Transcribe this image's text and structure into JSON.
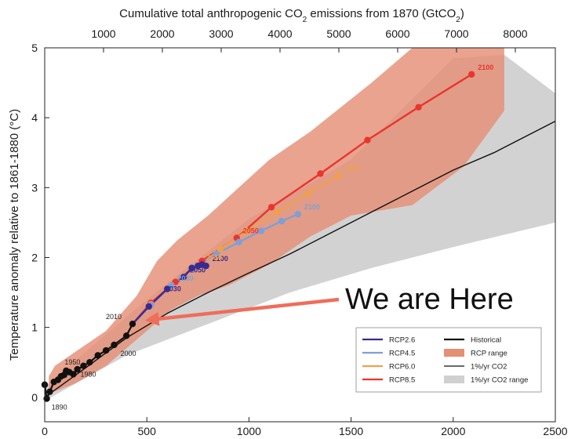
{
  "chart_data": {
    "type": "line",
    "title": "",
    "top_axis": {
      "label": "Cumulative total anthropogenic CO",
      "label_sub": "2",
      "label_tail": " emissions from 1870 (GtCO",
      "label_sub2": "2",
      "label_end": ")",
      "ticks": [
        {
          "value": 1000,
          "label": "1000"
        },
        {
          "value": 2000,
          "label": "2000"
        },
        {
          "value": 3000,
          "label": "3000"
        },
        {
          "value": 4000,
          "label": "4000"
        },
        {
          "value": 5000,
          "label": "5000"
        },
        {
          "value": 6000,
          "label": "6000"
        },
        {
          "value": 7000,
          "label": "7000"
        },
        {
          "value": 8000,
          "label": "8000"
        }
      ]
    },
    "ylabel": "Temperature anomaly relative to 1861-1880 (°C)",
    "xlim": [
      0,
      2500
    ],
    "ylim": [
      -0.35,
      5
    ],
    "x_ticks": [
      {
        "value": 0,
        "label": "0"
      },
      {
        "value": 500,
        "label": "500"
      },
      {
        "value": 1000,
        "label": "1000"
      },
      {
        "value": 1500,
        "label": "1500"
      },
      {
        "value": 2000,
        "label": "2000"
      },
      {
        "value": 2500,
        "label": "2500"
      }
    ],
    "y_ticks": [
      {
        "value": 0,
        "label": "0"
      },
      {
        "value": 1,
        "label": "1"
      },
      {
        "value": 2,
        "label": "2"
      },
      {
        "value": 3,
        "label": "3"
      },
      {
        "value": 4,
        "label": "4"
      },
      {
        "value": 5,
        "label": "5"
      }
    ],
    "colors": {
      "rcp26": "#3b2a8f",
      "rcp45": "#7f9fd6",
      "rcp60": "#f0a04b",
      "rcp85": "#e8352d",
      "historical": "#111111",
      "rcp_range": "#e58f75",
      "co2_range": "#d0d0d0",
      "arrow": "#ef6e5a"
    },
    "bands": [
      {
        "name": "1%/yr CO2 range",
        "points": [
          [
            0,
            -0.05
          ],
          [
            400,
            0.6
          ],
          [
            800,
            1.05
          ],
          [
            1200,
            1.5
          ],
          [
            1600,
            1.85
          ],
          [
            2000,
            2.15
          ],
          [
            2500,
            2.5
          ],
          [
            2500,
            4.35
          ],
          [
            2250,
            4.9
          ],
          [
            2000,
            4.85
          ],
          [
            1500,
            3.4
          ],
          [
            1000,
            2.55
          ],
          [
            500,
            1.4
          ],
          [
            180,
            0.6
          ],
          [
            0,
            0.15
          ]
        ]
      },
      {
        "name": "RCP range",
        "points": [
          [
            20,
            0.05
          ],
          [
            150,
            0.2
          ],
          [
            300,
            0.45
          ],
          [
            420,
            0.75
          ],
          [
            500,
            0.95
          ],
          [
            620,
            1.25
          ],
          [
            750,
            1.45
          ],
          [
            900,
            1.6
          ],
          [
            1100,
            1.9
          ],
          [
            1300,
            2.3
          ],
          [
            1500,
            2.6
          ],
          [
            1800,
            2.75
          ],
          [
            2050,
            3.3
          ],
          [
            2250,
            4.1
          ],
          [
            2250,
            5
          ],
          [
            1800,
            5
          ],
          [
            1600,
            4.5
          ],
          [
            1300,
            3.8
          ],
          [
            1100,
            3.4
          ],
          [
            950,
            3.0
          ],
          [
            800,
            2.6
          ],
          [
            650,
            2.25
          ],
          [
            550,
            1.95
          ],
          [
            450,
            1.45
          ],
          [
            300,
            0.95
          ],
          [
            150,
            0.65
          ],
          [
            50,
            0.45
          ],
          [
            20,
            0.3
          ]
        ]
      }
    ],
    "series": [
      {
        "name": "Historical",
        "key": "historical",
        "style": "thick",
        "points": [
          [
            0,
            0.18
          ],
          [
            10,
            -0.02
          ],
          [
            25,
            0.08
          ],
          [
            45,
            0.22
          ],
          [
            65,
            0.25
          ],
          [
            80,
            0.3
          ],
          [
            95,
            0.32
          ],
          [
            105,
            0.38
          ],
          [
            120,
            0.36
          ],
          [
            140,
            0.33
          ],
          [
            160,
            0.4
          ],
          [
            190,
            0.45
          ],
          [
            220,
            0.5
          ],
          [
            260,
            0.6
          ],
          [
            300,
            0.67
          ],
          [
            340,
            0.75
          ],
          [
            400,
            0.88
          ],
          [
            430,
            1.05
          ]
        ]
      },
      {
        "name": "1%/yr CO2",
        "key": "historical",
        "style": "thin",
        "points": [
          [
            0,
            0
          ],
          [
            200,
            0.42
          ],
          [
            400,
            0.85
          ],
          [
            600,
            1.2
          ],
          [
            800,
            1.5
          ],
          [
            1000,
            1.78
          ],
          [
            1200,
            2.05
          ],
          [
            1400,
            2.35
          ],
          [
            1600,
            2.65
          ],
          [
            1800,
            2.95
          ],
          [
            2000,
            3.25
          ],
          [
            2200,
            3.5
          ],
          [
            2500,
            3.95
          ]
        ]
      },
      {
        "name": "RCP2.6",
        "key": "rcp26",
        "style": "markers",
        "points": [
          [
            430,
            1.05
          ],
          [
            510,
            1.3
          ],
          [
            600,
            1.55
          ],
          [
            680,
            1.72
          ],
          [
            720,
            1.85
          ],
          [
            750,
            1.88
          ],
          [
            770,
            1.9
          ],
          [
            790,
            1.88
          ]
        ]
      },
      {
        "name": "RCP4.5",
        "key": "rcp45",
        "style": "markers",
        "points": [
          [
            430,
            1.05
          ],
          [
            520,
            1.32
          ],
          [
            620,
            1.6
          ],
          [
            730,
            1.85
          ],
          [
            840,
            2.05
          ],
          [
            950,
            2.22
          ],
          [
            1060,
            2.38
          ],
          [
            1160,
            2.52
          ],
          [
            1240,
            2.62
          ]
        ]
      },
      {
        "name": "RCP6.0",
        "key": "rcp60",
        "style": "markers",
        "points": [
          [
            430,
            1.05
          ],
          [
            520,
            1.33
          ],
          [
            620,
            1.6
          ],
          [
            740,
            1.85
          ],
          [
            860,
            2.12
          ],
          [
            990,
            2.38
          ],
          [
            1140,
            2.65
          ],
          [
            1290,
            2.92
          ],
          [
            1440,
            3.17
          ]
        ]
      },
      {
        "name": "RCP8.5",
        "key": "rcp85",
        "style": "markers",
        "points": [
          [
            430,
            1.05
          ],
          [
            520,
            1.35
          ],
          [
            640,
            1.65
          ],
          [
            770,
            1.95
          ],
          [
            940,
            2.28
          ],
          [
            1110,
            2.72
          ],
          [
            1350,
            3.2
          ],
          [
            1580,
            3.68
          ],
          [
            1830,
            4.15
          ],
          [
            2090,
            4.62
          ]
        ]
      }
    ],
    "point_labels": [
      {
        "text": "2100",
        "key": "rcp85",
        "at": [
          2090,
          4.62
        ]
      },
      {
        "text": "2100",
        "key": "rcp60",
        "at": [
          1440,
          3.17
        ]
      },
      {
        "text": "2100",
        "key": "rcp45",
        "at": [
          1240,
          2.62
        ]
      },
      {
        "text": "2100",
        "key": "rcp26",
        "at": [
          790,
          1.88
        ]
      },
      {
        "text": "2050",
        "key": "rcp85",
        "at": [
          940,
          2.28
        ]
      },
      {
        "text": "2050",
        "key": "rcp60",
        "at": [
          760,
          1.9
        ]
      },
      {
        "text": "2050",
        "key": "rcp26",
        "at": [
          680,
          1.72
        ]
      },
      {
        "text": "2030",
        "key": "rcp26",
        "at": [
          560,
          1.45
        ]
      },
      {
        "text": "2030",
        "key": "rcp45",
        "at": [
          620,
          1.6
        ]
      }
    ],
    "historical_labels": [
      {
        "text": "1950",
        "at": [
          105,
          0.38
        ]
      },
      {
        "text": "1890",
        "at": [
          10,
          -0.02
        ]
      },
      {
        "text": "1980",
        "at": [
          190,
          0.45
        ]
      },
      {
        "text": "2000",
        "at": [
          340,
          0.75
        ]
      },
      {
        "text": "2010",
        "at": [
          430,
          1.05
        ]
      }
    ],
    "legend": {
      "position": "bottom-right",
      "items": [
        {
          "label": "RCP2.6",
          "key": "rcp26",
          "kind": "line"
        },
        {
          "label": "Historical",
          "key": "historical",
          "kind": "thickline"
        },
        {
          "label": "RCP4.5",
          "key": "rcp45",
          "kind": "line"
        },
        {
          "label": "RCP range",
          "key": "rcp_range",
          "kind": "patch"
        },
        {
          "label": "RCP6.0",
          "key": "rcp60",
          "kind": "line"
        },
        {
          "label": "1%/yr CO2",
          "key": "historical",
          "kind": "thinline"
        },
        {
          "label": "RCP8.5",
          "key": "rcp85",
          "kind": "line"
        },
        {
          "label": "1%/yr CO2 range",
          "key": "co2_range",
          "kind": "patch"
        }
      ]
    },
    "annotation": {
      "text": "We are Here",
      "arrow_from": [
        1440,
        1.4
      ],
      "arrow_to": [
        490,
        1.1
      ]
    }
  }
}
